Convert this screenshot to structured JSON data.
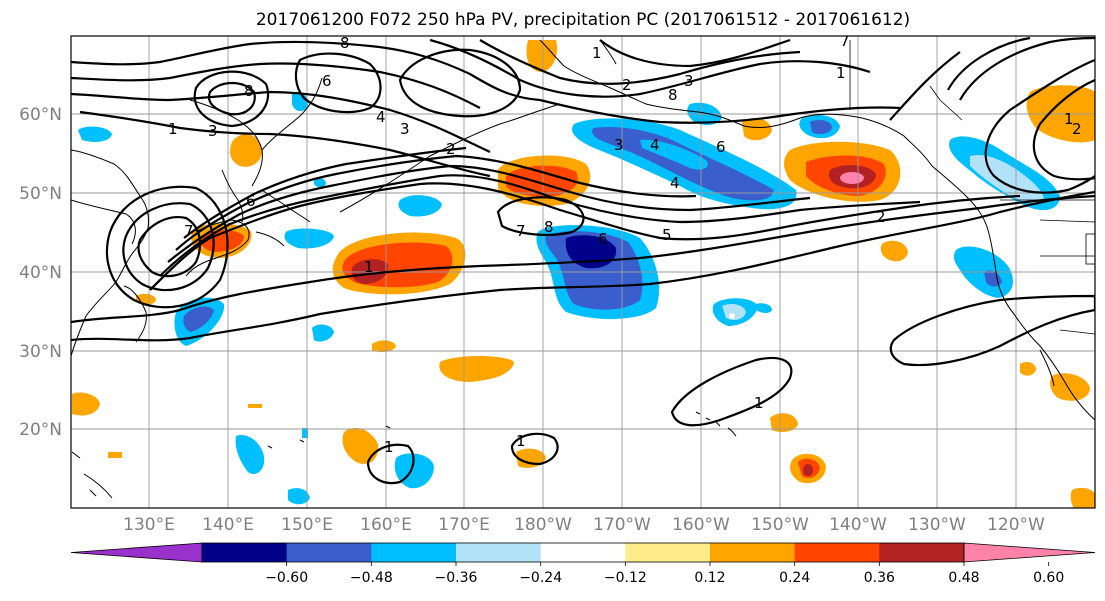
{
  "title": "2017061200 F072 250 hPa PV, precipitation PC (2017061512 - 2017061612)",
  "map": {
    "lat_labels": [
      {
        "text": "60°N",
        "lat": 60
      },
      {
        "text": "50°N",
        "lat": 50
      },
      {
        "text": "40°N",
        "lat": 40
      },
      {
        "text": "30°N",
        "lat": 30
      },
      {
        "text": "20°N",
        "lat": 20
      }
    ],
    "lon_labels": [
      {
        "text": "130°E",
        "lon": 130
      },
      {
        "text": "140°E",
        "lon": 140
      },
      {
        "text": "150°E",
        "lon": 150
      },
      {
        "text": "160°E",
        "lon": 160
      },
      {
        "text": "170°E",
        "lon": 170
      },
      {
        "text": "180°W",
        "lon": 180
      },
      {
        "text": "170°W",
        "lon": 190
      },
      {
        "text": "160°W",
        "lon": 200
      },
      {
        "text": "150°W",
        "lon": 210
      },
      {
        "text": "140°W",
        "lon": 220
      },
      {
        "text": "130°W",
        "lon": 230
      },
      {
        "text": "120°W",
        "lon": 240
      }
    ],
    "lon_range": [
      120,
      250
    ],
    "lat_range": [
      10,
      70
    ],
    "pv_contour_labels": [
      "1",
      "2",
      "3",
      "4",
      "5",
      "6",
      "7",
      "8"
    ],
    "colors": {
      "land_line": "#000000",
      "grid": "#9a9a9a"
    }
  },
  "colorbar": {
    "colors": [
      "#9932cc",
      "#00008b",
      "#3a5fcd",
      "#00bfff",
      "#b2e2f8",
      "#ffffff",
      "#ffec8b",
      "#ffa500",
      "#ff4500",
      "#b22222",
      "#ff82ab"
    ],
    "ticks": [
      "−0.60",
      "−0.48",
      "−0.36",
      "−0.24",
      "−0.12",
      "0.12",
      "0.24",
      "0.36",
      "0.48",
      "0.60"
    ]
  }
}
